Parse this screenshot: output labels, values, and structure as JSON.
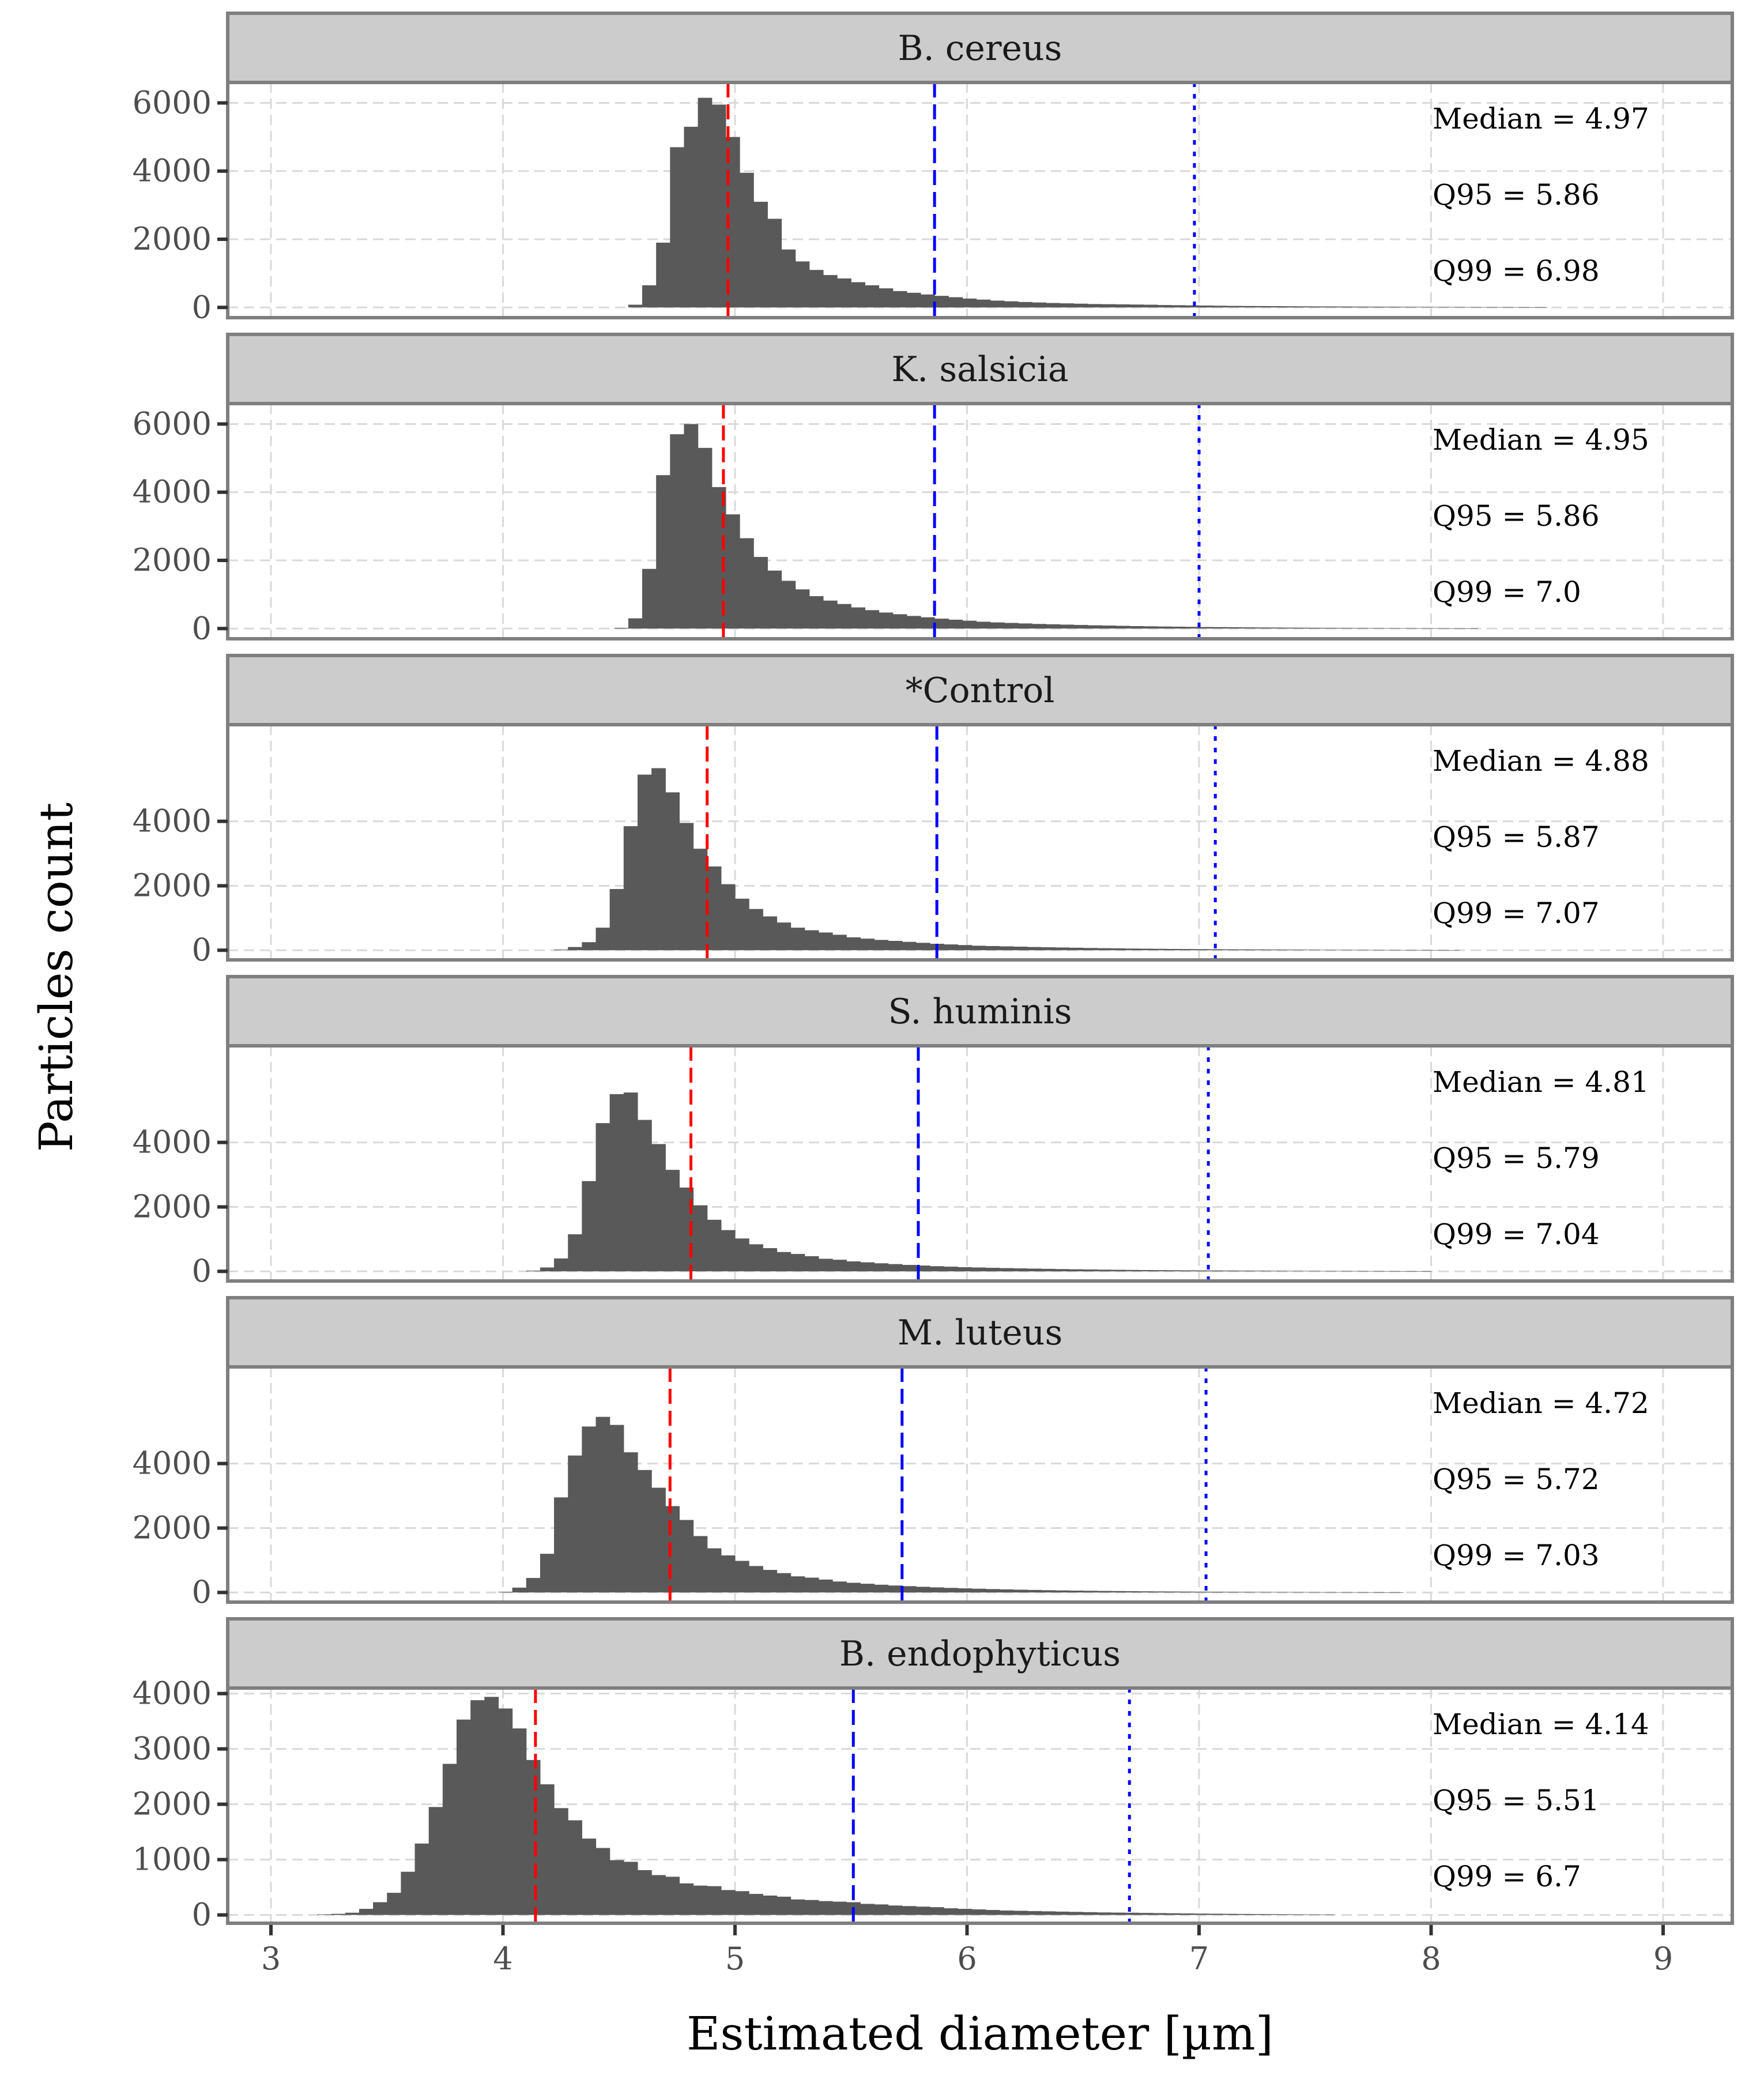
{
  "chart_data": {
    "type": "histogram",
    "layout": "facet-rows",
    "xlabel": "Estimated diameter [µm]",
    "ylabel": "Particles count",
    "xlim": [
      2.85,
      9.3
    ],
    "x_ticks": [
      3,
      4,
      5,
      6,
      7,
      8,
      9
    ],
    "grid": true,
    "colors": {
      "bars": "#595959",
      "median_line": "#ff0000",
      "q95_line": "#0000ff",
      "q99_line": "#0000ff",
      "strip_fill": "#cccccc",
      "panel_border": "#7f7f7f",
      "grid": "#d9d9d9"
    },
    "line_styles": {
      "median": "dashed",
      "q95": "long-dashed",
      "q99": "dotted"
    },
    "bin_width": 0.06,
    "panels": [
      {
        "title": "B. cereus",
        "ylim": [
          -300,
          6600
        ],
        "y_ticks": [
          0,
          2000,
          4000,
          6000
        ],
        "median": 4.97,
        "q95": 5.86,
        "q99": 6.98,
        "annotations": [
          "Median = 4.97",
          "Q95 = 5.86",
          "Q99 = 6.98"
        ],
        "bins_start": 4.54,
        "counts": [
          80,
          650,
          1900,
          4700,
          5300,
          6150,
          5950,
          5000,
          3950,
          3100,
          2600,
          1700,
          1350,
          1100,
          950,
          850,
          740,
          650,
          560,
          480,
          430,
          380,
          340,
          300,
          260,
          230,
          200,
          180,
          160,
          145,
          130,
          120,
          110,
          100,
          95,
          90,
          85,
          80,
          70,
          65,
          60,
          55,
          50,
          45,
          42,
          40,
          38,
          35,
          32,
          30,
          28,
          26,
          24,
          22,
          20,
          18,
          16,
          15,
          14,
          12,
          11,
          10,
          9,
          8,
          7,
          6
        ]
      },
      {
        "title": "K. salsicia",
        "ylim": [
          -300,
          6600
        ],
        "y_ticks": [
          0,
          2000,
          4000,
          6000
        ],
        "median": 4.95,
        "q95": 5.86,
        "q99": 7.0,
        "annotations": [
          "Median = 4.95",
          "Q95 = 5.86",
          "Q99 = 7.0"
        ],
        "bins_start": 4.48,
        "counts": [
          20,
          300,
          1750,
          4500,
          5700,
          6000,
          5300,
          4150,
          3350,
          2650,
          2100,
          1700,
          1400,
          1150,
          950,
          820,
          720,
          620,
          540,
          470,
          420,
          370,
          330,
          290,
          260,
          230,
          200,
          180,
          165,
          150,
          135,
          125,
          115,
          105,
          95,
          88,
          80,
          72,
          66,
          60,
          55,
          50,
          45,
          42,
          38,
          35,
          32,
          30,
          27,
          25,
          22,
          20,
          18,
          16,
          14,
          12,
          11,
          10,
          9,
          8,
          7,
          6
        ]
      },
      {
        "title": "*Control",
        "ylim": [
          -300,
          7000
        ],
        "y_ticks": [
          0,
          2000,
          4000
        ],
        "median": 4.88,
        "q95": 5.87,
        "q99": 7.07,
        "annotations": [
          "Median = 4.88",
          "Q95 = 5.87",
          "Q99 = 7.07"
        ],
        "bins_start": 4.22,
        "counts": [
          20,
          100,
          250,
          700,
          1900,
          3850,
          5450,
          5650,
          4900,
          3950,
          3150,
          2600,
          2050,
          1600,
          1280,
          1050,
          860,
          700,
          620,
          550,
          480,
          400,
          360,
          320,
          290,
          260,
          230,
          200,
          180,
          160,
          140,
          130,
          120,
          110,
          100,
          92,
          85,
          78,
          70,
          64,
          58,
          52,
          48,
          44,
          40,
          37,
          34,
          31,
          28,
          26,
          24,
          22,
          20,
          18,
          16,
          14,
          13,
          12,
          11,
          10,
          9,
          8,
          7,
          6,
          5
        ]
      },
      {
        "title": "S. huminis",
        "ylim": [
          -300,
          7000
        ],
        "y_ticks": [
          0,
          2000,
          4000
        ],
        "median": 4.81,
        "q95": 5.79,
        "q99": 7.04,
        "annotations": [
          "Median = 4.81",
          "Q95 = 5.79",
          "Q99 = 7.04"
        ],
        "bins_start": 4.1,
        "counts": [
          20,
          120,
          400,
          1150,
          2800,
          4600,
          5500,
          5550,
          4700,
          3950,
          3150,
          2600,
          2050,
          1600,
          1280,
          1020,
          840,
          720,
          600,
          540,
          470,
          390,
          360,
          310,
          280,
          250,
          225,
          200,
          180,
          160,
          145,
          130,
          120,
          110,
          100,
          92,
          85,
          78,
          70,
          64,
          58,
          52,
          48,
          44,
          40,
          37,
          34,
          31,
          28,
          26,
          24,
          22,
          20,
          18,
          16,
          14,
          13,
          12,
          11,
          10,
          9,
          8,
          7,
          6,
          5
        ]
      },
      {
        "title": "M. luteus",
        "ylim": [
          -300,
          7000
        ],
        "y_ticks": [
          0,
          2000,
          4000
        ],
        "median": 4.72,
        "q95": 5.72,
        "q99": 7.03,
        "annotations": [
          "Median = 4.72",
          "Q95 = 5.72",
          "Q99 = 7.03"
        ],
        "bins_start": 3.98,
        "counts": [
          20,
          150,
          450,
          1200,
          2950,
          4250,
          5150,
          5450,
          5200,
          4350,
          3800,
          3250,
          2680,
          2250,
          1750,
          1370,
          1150,
          980,
          820,
          700,
          600,
          500,
          460,
          400,
          340,
          300,
          270,
          240,
          215,
          195,
          175,
          158,
          142,
          128,
          116,
          105,
          95,
          86,
          78,
          70,
          63,
          57,
          52,
          47,
          43,
          39,
          35,
          32,
          29,
          26,
          24,
          22,
          20,
          18,
          16,
          14,
          13,
          12,
          11,
          10,
          9,
          8,
          7,
          6,
          5
        ]
      },
      {
        "title": "B. endophyticus",
        "ylim": [
          -150,
          4100
        ],
        "y_ticks": [
          0,
          1000,
          2000,
          3000,
          4000
        ],
        "median": 4.14,
        "q95": 5.51,
        "q99": 6.7,
        "annotations": [
          "Median = 4.14",
          "Q95 = 5.51",
          "Q99 = 6.7"
        ],
        "bins_start": 3.2,
        "counts": [
          10,
          20,
          40,
          110,
          230,
          400,
          780,
          1290,
          1950,
          2730,
          3530,
          3880,
          3940,
          3730,
          3370,
          2800,
          2360,
          1930,
          1710,
          1380,
          1210,
          990,
          960,
          810,
          720,
          690,
          570,
          530,
          520,
          450,
          430,
          380,
          350,
          330,
          280,
          270,
          250,
          240,
          230,
          200,
          190,
          170,
          160,
          150,
          140,
          120,
          110,
          100,
          90,
          80,
          75,
          70,
          65,
          60,
          55,
          50,
          45,
          42,
          40,
          36,
          33,
          30,
          27,
          24,
          22,
          20,
          18,
          16,
          14,
          12,
          10,
          9,
          8
        ]
      }
    ]
  }
}
